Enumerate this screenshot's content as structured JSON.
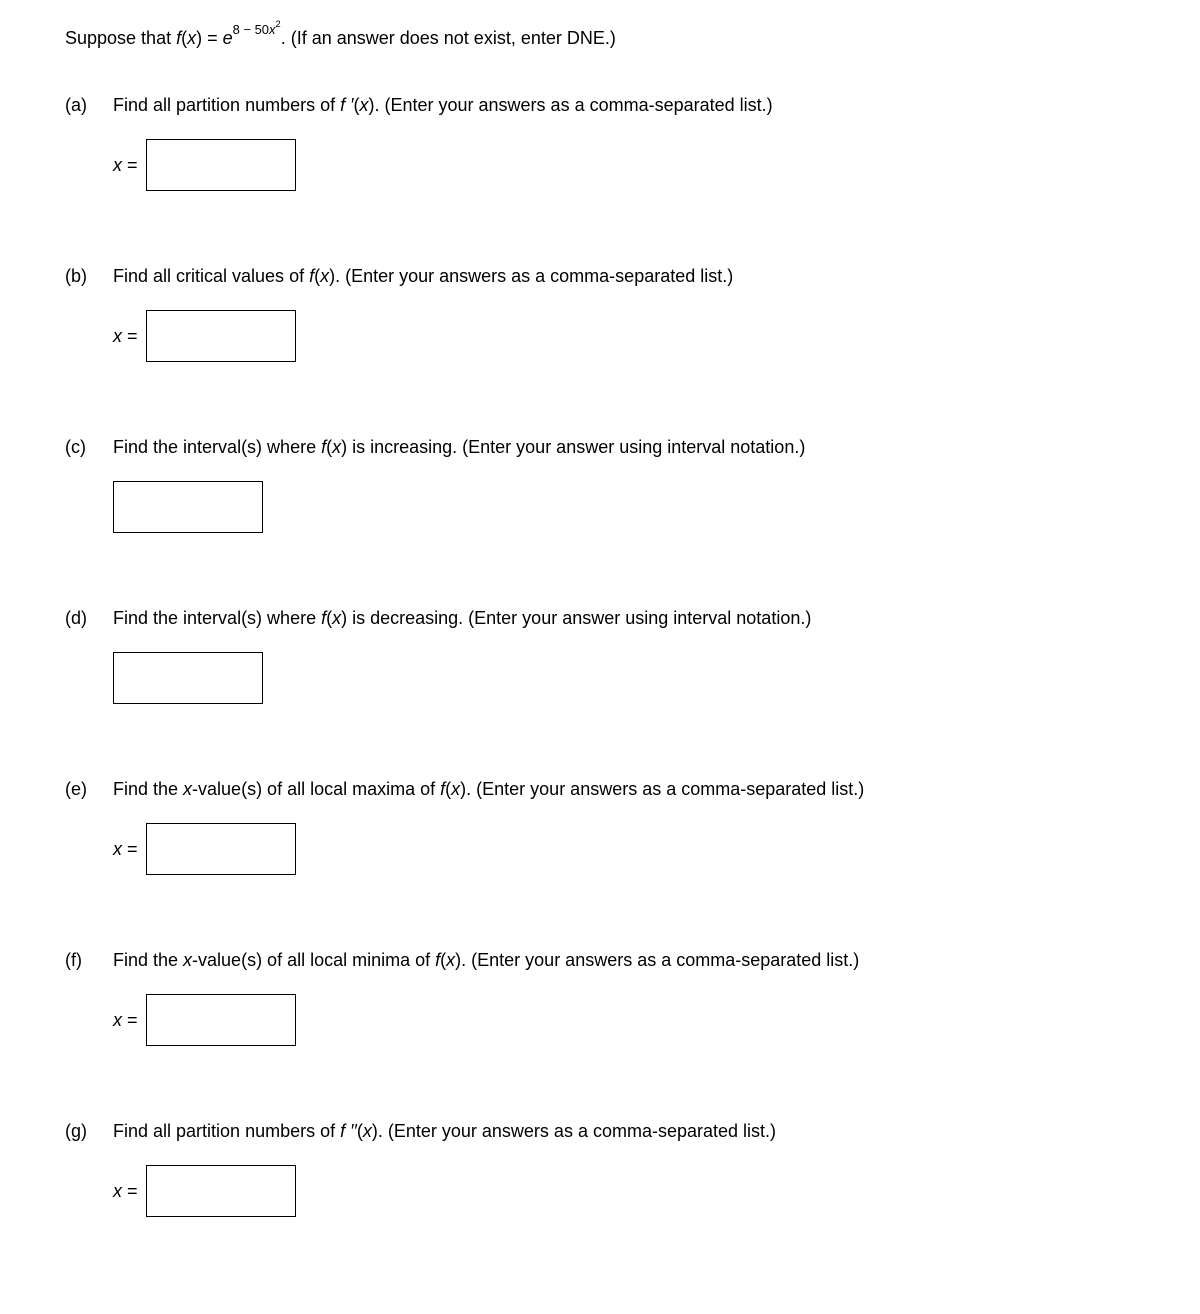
{
  "intro": {
    "prefix": "Suppose that ",
    "fx": "f",
    "var": "x",
    "equals": " = ",
    "base": "e",
    "exp1": "8 − 50",
    "expVar": "x",
    "exp2": "2",
    "suffix": ". (If an answer does not exist, enter DNE.)"
  },
  "parts": [
    {
      "label": "(a)",
      "question_segments": [
        {
          "t": "Find all partition numbers of "
        },
        {
          "t": "f ′",
          "italic": true
        },
        {
          "t": "("
        },
        {
          "t": "x",
          "italic": true
        },
        {
          "t": "). (Enter your answers as a comma-separated list.)"
        }
      ],
      "has_prefix": true,
      "prefix": "x =",
      "input_width": 150
    },
    {
      "label": "(b)",
      "question_segments": [
        {
          "t": "Find all critical values of "
        },
        {
          "t": "f",
          "italic": true
        },
        {
          "t": "("
        },
        {
          "t": "x",
          "italic": true
        },
        {
          "t": "). (Enter your answers as a comma-separated list.)"
        }
      ],
      "has_prefix": true,
      "prefix": "x =",
      "input_width": 150
    },
    {
      "label": "(c)",
      "question_segments": [
        {
          "t": "Find the interval(s) where "
        },
        {
          "t": "f",
          "italic": true
        },
        {
          "t": "("
        },
        {
          "t": "x",
          "italic": true
        },
        {
          "t": ") is increasing. (Enter your answer using interval notation.)"
        }
      ],
      "has_prefix": false,
      "input_width": 150
    },
    {
      "label": "(d)",
      "question_segments": [
        {
          "t": "Find the interval(s) where "
        },
        {
          "t": "f",
          "italic": true
        },
        {
          "t": "("
        },
        {
          "t": "x",
          "italic": true
        },
        {
          "t": ") is decreasing. (Enter your answer using interval notation.)"
        }
      ],
      "has_prefix": false,
      "input_width": 150
    },
    {
      "label": "(e)",
      "question_segments": [
        {
          "t": "Find the "
        },
        {
          "t": "x",
          "italic": true
        },
        {
          "t": "-value(s) of all local maxima of "
        },
        {
          "t": "f",
          "italic": true
        },
        {
          "t": "("
        },
        {
          "t": "x",
          "italic": true
        },
        {
          "t": "). (Enter your answers as a comma-separated list.)"
        }
      ],
      "has_prefix": true,
      "prefix": "x =",
      "input_width": 150
    },
    {
      "label": "(f)",
      "question_segments": [
        {
          "t": "Find the "
        },
        {
          "t": "x",
          "italic": true
        },
        {
          "t": "-value(s) of all local minima of "
        },
        {
          "t": "f",
          "italic": true
        },
        {
          "t": "("
        },
        {
          "t": "x",
          "italic": true
        },
        {
          "t": "). (Enter your answers as a comma-separated list.)"
        }
      ],
      "has_prefix": true,
      "prefix": "x =",
      "input_width": 150
    },
    {
      "label": "(g)",
      "question_segments": [
        {
          "t": "Find all partition numbers of "
        },
        {
          "t": "f ′′",
          "italic": true
        },
        {
          "t": "("
        },
        {
          "t": "x",
          "italic": true
        },
        {
          "t": "). (Enter your answers as a comma-separated list.)"
        }
      ],
      "has_prefix": true,
      "prefix": "x =",
      "input_width": 150
    }
  ],
  "style": {
    "text_color": "#000000",
    "bg_color": "#ffffff",
    "input_border": "#000000",
    "input_height": 52,
    "base_font_size": 18
  }
}
